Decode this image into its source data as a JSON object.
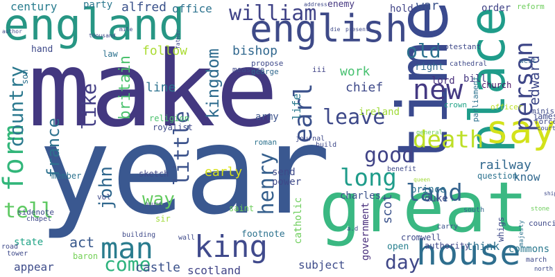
{
  "words": [
    {
      "text": "make",
      "color": "#433880"
    },
    {
      "text": "year",
      "color": "#3a5890"
    },
    {
      "text": "great",
      "color": "#3ab882"
    },
    {
      "text": "time",
      "color": "#3a4a8e"
    },
    {
      "text": "england",
      "color": "#279684"
    },
    {
      "text": "english",
      "color": "#3e4a88"
    },
    {
      "text": "place",
      "color": "#1f9c8a"
    },
    {
      "text": "say",
      "color": "#d3e21b"
    },
    {
      "text": "house",
      "color": "#2e6e8e"
    },
    {
      "text": "king",
      "color": "#404a8c"
    },
    {
      "text": "man",
      "color": "#2a7c8e"
    },
    {
      "text": "land",
      "color": "#33628d"
    },
    {
      "text": "long",
      "color": "#1f9c8a"
    },
    {
      "text": "new",
      "color": "#443982"
    },
    {
      "text": "earl",
      "color": "#3b518b"
    },
    {
      "text": "person",
      "color": "#3f4788"
    },
    {
      "text": "william",
      "color": "#404387"
    },
    {
      "text": "form",
      "color": "#32b67a"
    },
    {
      "text": "country",
      "color": "#2a788e"
    },
    {
      "text": "france",
      "color": "#2d718e"
    },
    {
      "text": "kingdom",
      "color": "#2f6c8e"
    },
    {
      "text": "old",
      "color": "#2d718e"
    },
    {
      "text": "good",
      "color": "#414487"
    },
    {
      "text": "leave",
      "color": "#3e4989"
    },
    {
      "text": "death",
      "color": "#bddf26"
    },
    {
      "text": "john",
      "color": "#31688e"
    },
    {
      "text": "henry",
      "color": "#355f8d"
    },
    {
      "text": "little",
      "color": "#3b528b"
    },
    {
      "text": "like",
      "color": "#433e85"
    },
    {
      "text": "edward",
      "color": "#3e4989"
    },
    {
      "text": "tell",
      "color": "#5ec962"
    },
    {
      "text": "britain",
      "color": "#4ac16d"
    },
    {
      "text": "way",
      "color": "#63cb5f"
    },
    {
      "text": "day",
      "color": "#3f4788"
    },
    {
      "text": "come",
      "color": "#2db27d"
    },
    {
      "text": "century",
      "color": "#287c8e"
    },
    {
      "text": "alfred",
      "color": "#3b528b"
    },
    {
      "text": "office",
      "color": "#2c728e"
    },
    {
      "text": "bishop",
      "color": "#31688e"
    },
    {
      "text": "follow",
      "color": "#aadc32"
    },
    {
      "text": "line",
      "color": "#2c728e"
    },
    {
      "text": "work",
      "color": "#46c06f"
    },
    {
      "text": "chief",
      "color": "#3e4989"
    },
    {
      "text": "life",
      "color": "#2a788e"
    },
    {
      "text": "early",
      "color": "#d8e219"
    },
    {
      "text": "castle",
      "color": "#3b528b"
    },
    {
      "text": "scotland",
      "color": "#414487"
    },
    {
      "text": "subject",
      "color": "#3e4c8a"
    },
    {
      "text": "appear",
      "color": "#3e4c8a"
    },
    {
      "text": "act",
      "color": "#38588c"
    },
    {
      "text": "state",
      "color": "#20a386"
    },
    {
      "text": "duke",
      "color": "#3e4c8a"
    },
    {
      "text": "prince",
      "color": "#2c718e"
    },
    {
      "text": "railway",
      "color": "#31688e"
    },
    {
      "text": "know",
      "color": "#31688e"
    },
    {
      "text": "charles",
      "color": "#3b528b"
    },
    {
      "text": "think",
      "color": "#2d708e"
    },
    {
      "text": "commons",
      "color": "#2a788e"
    },
    {
      "text": "open",
      "color": "#277f8e"
    },
    {
      "text": "party",
      "color": "#2a788e"
    },
    {
      "text": "enemy",
      "color": "#453781"
    },
    {
      "text": "hold",
      "color": "#414487"
    },
    {
      "text": "war",
      "color": "#3b528b"
    },
    {
      "text": "order",
      "color": "#414487"
    },
    {
      "text": "reform",
      "color": "#6ccd5a"
    },
    {
      "text": "lord",
      "color": "#472d7b"
    },
    {
      "text": "right",
      "color": "#31688e"
    },
    {
      "text": "bill",
      "color": "#453781"
    },
    {
      "text": "church",
      "color": "#471063"
    },
    {
      "text": "james",
      "color": "#3e4989"
    },
    {
      "text": "crown",
      "color": "#20a386"
    },
    {
      "text": "ireland",
      "color": "#a0da39"
    },
    {
      "text": "army",
      "color": "#3b528b"
    },
    {
      "text": "send",
      "color": "#3e4989"
    },
    {
      "text": "power",
      "color": "#3e4989"
    },
    {
      "text": "scot",
      "color": "#3b528b"
    },
    {
      "text": "catholic",
      "color": "#6ccd5a"
    },
    {
      "text": "government",
      "color": "#472d7b"
    },
    {
      "text": "cromwell",
      "color": "#3e4989"
    },
    {
      "text": "authority",
      "color": "#3f4788"
    },
    {
      "text": "footnote",
      "color": "#2c728e"
    },
    {
      "text": "baron",
      "color": "#73d056"
    },
    {
      "text": "sir",
      "color": "#a0da39"
    },
    {
      "text": "saint",
      "color": "#6ccd5a"
    },
    {
      "text": "sketch",
      "color": "#3f4788"
    },
    {
      "text": "religion",
      "color": "#4ac16d"
    },
    {
      "text": "royalist",
      "color": "#3e4989"
    },
    {
      "text": "hand",
      "color": "#3e4989"
    },
    {
      "text": "son",
      "color": "#2c728e"
    },
    {
      "text": "law",
      "color": "#2c728e"
    },
    {
      "text": "measure",
      "color": "#3e4989"
    },
    {
      "text": "propose",
      "color": "#3e4989"
    },
    {
      "text": "george",
      "color": "#31688e"
    },
    {
      "text": "iii",
      "color": "#414487"
    },
    {
      "text": "protestant",
      "color": "#3e4989"
    },
    {
      "text": "parliament",
      "color": "#2c728e"
    },
    {
      "text": "cathedral",
      "color": "#3e4989"
    },
    {
      "text": "west",
      "color": "#31688e"
    },
    {
      "text": "officer",
      "color": "#bddf26"
    },
    {
      "text": "minister",
      "color": "#3e4989"
    },
    {
      "text": "force",
      "color": "#3e4989"
    },
    {
      "text": "court",
      "color": "#3e4989"
    },
    {
      "text": "journal",
      "color": "#3e4989"
    },
    {
      "text": "roman",
      "color": "#2c728e"
    },
    {
      "text": "build",
      "color": "#3e4989"
    },
    {
      "text": "general",
      "color": "#6ccd5a"
    },
    {
      "text": "benefit",
      "color": "#3e4989"
    },
    {
      "text": "question",
      "color": "#2c728e"
    },
    {
      "text": "queen",
      "color": "#a0da39"
    },
    {
      "text": "member",
      "color": "#2c728e"
    },
    {
      "text": "vol",
      "color": "#3e4989"
    },
    {
      "text": "pound",
      "color": "#3e4989"
    },
    {
      "text": "sidenote",
      "color": "#3e4989"
    },
    {
      "text": "chapel",
      "color": "#3e4989"
    },
    {
      "text": "road",
      "color": "#3e4989"
    },
    {
      "text": "tower",
      "color": "#3e4989"
    },
    {
      "text": "building",
      "color": "#3e4989"
    },
    {
      "text": "wall",
      "color": "#3e4989"
    },
    {
      "text": "south",
      "color": "#31688e"
    },
    {
      "text": "a.d",
      "color": "#3e4989"
    },
    {
      "text": "carry",
      "color": "#3b528b"
    },
    {
      "text": "whigs",
      "color": "#3e4989"
    },
    {
      "text": "majesty",
      "color": "#2c728e"
    },
    {
      "text": "council",
      "color": "#3e4989"
    },
    {
      "text": "march",
      "color": "#3e4989"
    },
    {
      "text": "north",
      "color": "#3e4989"
    },
    {
      "text": "stone",
      "color": "#6ccd5a"
    },
    {
      "text": "ship",
      "color": "#3e4989"
    },
    {
      "text": "address",
      "color": "#3e4989"
    },
    {
      "text": "die",
      "color": "#3e4989"
    },
    {
      "text": "present",
      "color": "#3e4989"
    },
    {
      "text": "thousand",
      "color": "#3e4989"
    },
    {
      "text": "mile",
      "color": "#3e4989"
    },
    {
      "text": "author",
      "color": "#3e4989"
    },
    {
      "text": "father",
      "color": "#3e4989"
    }
  ]
}
